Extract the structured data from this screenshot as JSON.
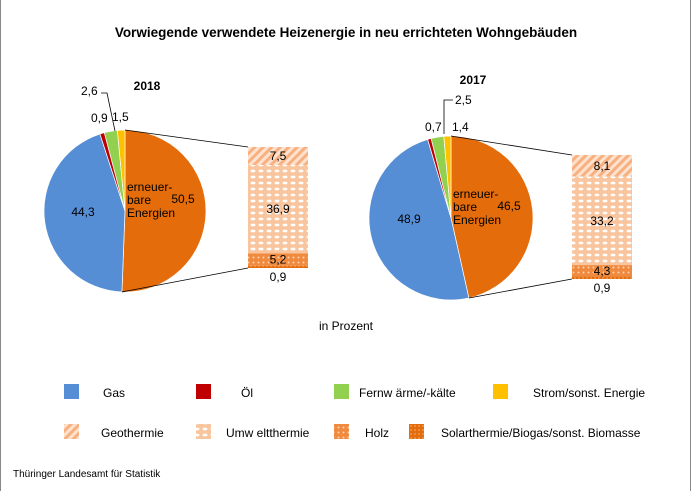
{
  "chart_data": {
    "type": "pie",
    "title": "Vorwiegende verwendete Heizenergie in neu errichteten Wohngebäuden",
    "unit_label": "in Prozent",
    "source": "Thüringer  Landesamt für Statistik",
    "renewable_label": [
      "erneuer-",
      "bare",
      "Energien"
    ],
    "categories": [
      "erneuerbare Energien",
      "Gas",
      "Öl",
      "Fernwärme/-kälte",
      "Strom/sonst. Energie"
    ],
    "colors": {
      "erneuerbare Energien": "#e46c0a",
      "Gas": "#558ed5",
      "Öl": "#c00000",
      "Fernwärme/-kälte": "#92d050",
      "Strom/sonst. Energie": "#ffc000"
    },
    "sub_categories": [
      "Geothermie",
      "Umweltthermie",
      "Holz",
      "Solarthermie/Biogas/sonst. Biomasse"
    ],
    "charts": [
      {
        "title": "2018",
        "values": [
          50.5,
          44.3,
          0.9,
          2.6,
          1.5
        ],
        "labels": [
          "50,5",
          "44,3",
          "0,9",
          "2,6",
          "1,5"
        ],
        "sub_values": [
          7.5,
          36.9,
          5.2,
          0.9
        ],
        "sub_labels": [
          "7,5",
          "36,9",
          "5,2",
          "0,9"
        ]
      },
      {
        "title": "2017",
        "values": [
          46.5,
          48.9,
          0.7,
          2.5,
          1.4
        ],
        "labels": [
          "46,5",
          "48,9",
          "0,7",
          "2,5",
          "1,4"
        ],
        "sub_values": [
          8.1,
          33.2,
          4.3,
          0.9
        ],
        "sub_labels": [
          "8,1",
          "33,2",
          "4,3",
          "0,9"
        ]
      }
    ],
    "legend": {
      "placement": "bottom",
      "items": [
        "Gas",
        "Öl",
        "Fernw ärme/-kälte",
        "Strom/sonst. Energie",
        "Geothermie",
        "Umw eltthermie",
        "Holz",
        "Solarthermie/Biogas/sonst. Biomasse"
      ]
    }
  }
}
